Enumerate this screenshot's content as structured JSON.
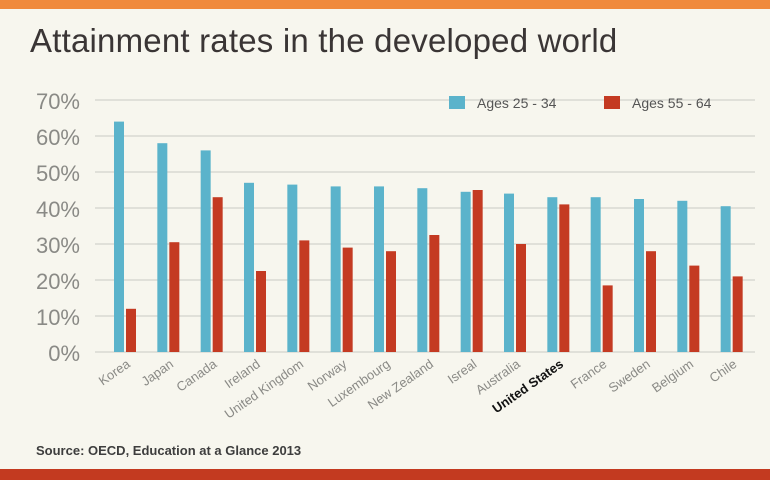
{
  "title": "Attainment rates in the developed world",
  "source": "Source: OECD, Education at a Glance 2013",
  "colors": {
    "series1": "#5bb3cb",
    "series2": "#c43a22",
    "accent_top": "#f08a3c",
    "accent_bottom": "#c33a20"
  },
  "chart_data": {
    "type": "bar",
    "title": "Attainment rates in the developed world",
    "xlabel": "",
    "ylabel": "",
    "ylim": [
      0,
      70
    ],
    "yticks": [
      "0%",
      "10%",
      "20%",
      "30%",
      "40%",
      "50%",
      "60%",
      "70%"
    ],
    "grid": true,
    "legend_position": "top-right",
    "categories": [
      "Korea",
      "Japan",
      "Canada",
      "Ireland",
      "United Kingdom",
      "Norway",
      "Luxembourg",
      "New Zealand",
      "Isreal",
      "Australia",
      "United States",
      "France",
      "Sweden",
      "Belgium",
      "Chile"
    ],
    "highlight_category": "United States",
    "series": [
      {
        "name": "Ages 25 - 34",
        "color": "#5bb3cb",
        "values": [
          64,
          58,
          56,
          47,
          46.5,
          46,
          46,
          45.5,
          44.5,
          44,
          43,
          43,
          42.5,
          42,
          40.5
        ]
      },
      {
        "name": "Ages 55 - 64",
        "color": "#c43a22",
        "values": [
          12,
          30.5,
          43,
          22.5,
          31,
          29,
          28,
          32.5,
          45,
          30,
          41,
          18.5,
          28,
          24,
          21
        ]
      }
    ]
  }
}
